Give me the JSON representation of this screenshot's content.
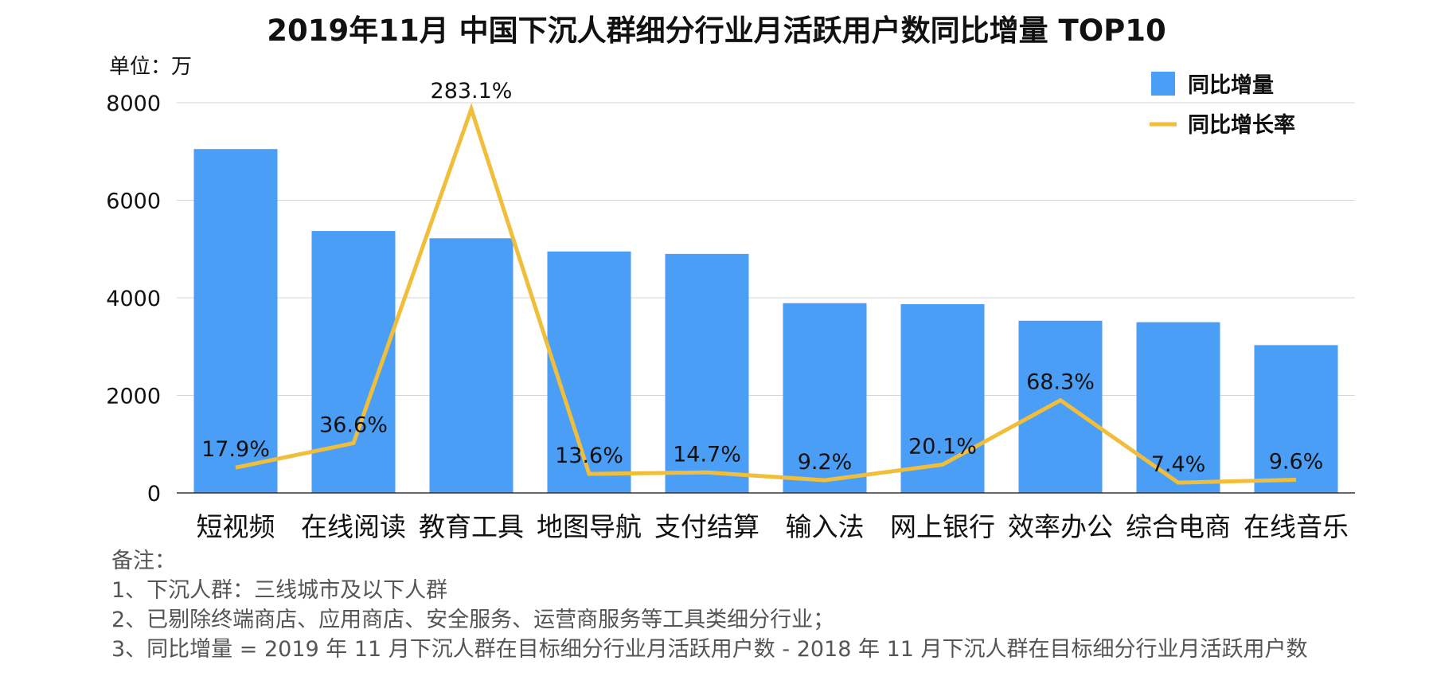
{
  "title": "2019年11月 中国下沉人群细分行业月活跃用户数同比增量 TOP10",
  "unit_label": "单位：万",
  "notes": {
    "heading": "备注：",
    "items": [
      "1、下沉人群：三线城市及以下人群",
      "2、已剔除终端商店、应用商店、安全服务、运营商服务等工具类细分行业；",
      "3、同比增量 = 2019 年 11 月下沉人群在目标细分行业月活跃用户数 - 2018 年 11 月下沉人群在目标细分行业月活跃用户数"
    ]
  },
  "chart_data": {
    "type": "bar",
    "categories": [
      "短视频",
      "在线阅读",
      "教育工具",
      "地图导航",
      "支付结算",
      "输入法",
      "网上银行",
      "效率办公",
      "综合电商",
      "在线音乐"
    ],
    "series": [
      {
        "name": "同比增量",
        "type": "bar",
        "color": "#4A9EF5",
        "values": [
          7050,
          5370,
          5220,
          4950,
          4900,
          3890,
          3870,
          3530,
          3500,
          3030
        ]
      },
      {
        "name": "同比增长率",
        "type": "line",
        "color": "#F0BE3A",
        "line_positions": [
          520,
          1020,
          7870,
          390,
          420,
          260,
          580,
          1900,
          210,
          270
        ],
        "labels": [
          "17.9%",
          "36.6%",
          "283.1%",
          "13.6%",
          "14.7%",
          "9.2%",
          "20.1%",
          "68.3%",
          "7.4%",
          "9.6%"
        ]
      }
    ],
    "y_ticks": [
      "0",
      "2000",
      "4000",
      "6000",
      "8000"
    ],
    "ylim": [
      0,
      8000
    ],
    "grid": true,
    "legend_position": "top-right"
  }
}
